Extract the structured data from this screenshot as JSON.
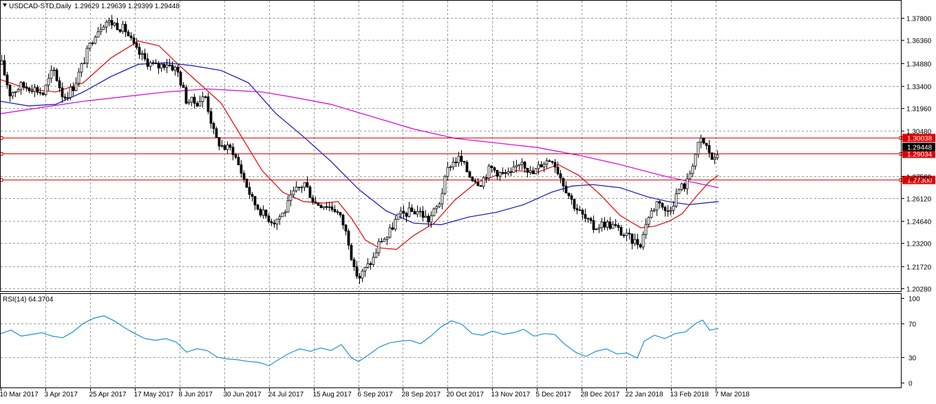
{
  "header": {
    "symbol": "USDCAD-STD,Daily",
    "ohlc": "1.29629 1.29639 1.29399 1.29448"
  },
  "rsi_panel": {
    "label": "RSI(14) 64.3704"
  },
  "chart_data": {
    "type": "candlestick",
    "instrument": "USDCAD-STD",
    "timeframe": "Daily",
    "price_axis": {
      "ylim": [
        1.2005,
        1.3892
      ],
      "ticks": [
        "1.37800",
        "1.36360",
        "1.34880",
        "1.33400",
        "1.31960",
        "1.30480",
        "1.27560",
        "1.26120",
        "1.24640",
        "1.23200",
        "1.21720",
        "1.20280"
      ]
    },
    "date_axis": {
      "labels": [
        "10 Mar 2017",
        "3 Apr 2017",
        "25 Apr 2017",
        "17 May 2017",
        "8 Jun 2017",
        "30 Jun 2017",
        "24 Jul 2017",
        "15 Aug 2017",
        "6 Sep 2017",
        "28 Sep 2017",
        "20 Oct 2017",
        "13 Nov 2017",
        "5 Dec 2017",
        "28 Dec 2017",
        "22 Jan 2018",
        "13 Feb 2018",
        "7 Mar 2018"
      ]
    },
    "price_path": [
      [
        0,
        1.348
      ],
      [
        12,
        1.329
      ],
      [
        28,
        1.334
      ],
      [
        45,
        1.333
      ],
      [
        60,
        1.329
      ],
      [
        75,
        1.345
      ],
      [
        90,
        1.326
      ],
      [
        105,
        1.334
      ],
      [
        120,
        1.351
      ],
      [
        135,
        1.368
      ],
      [
        150,
        1.376
      ],
      [
        165,
        1.374
      ],
      [
        180,
        1.37
      ],
      [
        195,
        1.357
      ],
      [
        210,
        1.35
      ],
      [
        225,
        1.346
      ],
      [
        240,
        1.349
      ],
      [
        255,
        1.344
      ],
      [
        268,
        1.325
      ],
      [
        282,
        1.323
      ],
      [
        296,
        1.327
      ],
      [
        310,
        1.3
      ],
      [
        322,
        1.294
      ],
      [
        335,
        1.293
      ],
      [
        350,
        1.276
      ],
      [
        365,
        1.259
      ],
      [
        380,
        1.251
      ],
      [
        395,
        1.246
      ],
      [
        410,
        1.252
      ],
      [
        425,
        1.265
      ],
      [
        440,
        1.271
      ],
      [
        455,
        1.258
      ],
      [
        470,
        1.257
      ],
      [
        485,
        1.254
      ],
      [
        495,
        1.246
      ],
      [
        505,
        1.232
      ],
      [
        512,
        1.214
      ],
      [
        520,
        1.21
      ],
      [
        528,
        1.215
      ],
      [
        540,
        1.222
      ],
      [
        550,
        1.234
      ],
      [
        560,
        1.236
      ],
      [
        575,
        1.249
      ],
      [
        590,
        1.252
      ],
      [
        605,
        1.253
      ],
      [
        620,
        1.247
      ],
      [
        635,
        1.257
      ],
      [
        650,
        1.283
      ],
      [
        665,
        1.287
      ],
      [
        680,
        1.276
      ],
      [
        695,
        1.271
      ],
      [
        710,
        1.281
      ],
      [
        725,
        1.277
      ],
      [
        740,
        1.276
      ],
      [
        755,
        1.287
      ],
      [
        770,
        1.276
      ],
      [
        785,
        1.284
      ],
      [
        800,
        1.287
      ],
      [
        815,
        1.272
      ],
      [
        830,
        1.258
      ],
      [
        845,
        1.249
      ],
      [
        860,
        1.242
      ],
      [
        875,
        1.245
      ],
      [
        890,
        1.243
      ],
      [
        905,
        1.237
      ],
      [
        920,
        1.233
      ],
      [
        930,
        1.232
      ],
      [
        935,
        1.245
      ],
      [
        945,
        1.253
      ],
      [
        955,
        1.261
      ],
      [
        965,
        1.251
      ],
      [
        975,
        1.258
      ],
      [
        985,
        1.268
      ],
      [
        995,
        1.27
      ],
      [
        1005,
        1.286
      ],
      [
        1015,
        1.299
      ],
      [
        1025,
        1.294
      ],
      [
        1035,
        1.284
      ],
      [
        1043,
        1.294
      ]
    ],
    "series": [
      {
        "name": "MA fast",
        "color": "#e00000",
        "points": [
          [
            0,
            1.338
          ],
          [
            40,
            1.332
          ],
          [
            80,
            1.33
          ],
          [
            120,
            1.336
          ],
          [
            160,
            1.352
          ],
          [
            200,
            1.363
          ],
          [
            230,
            1.36
          ],
          [
            260,
            1.347
          ],
          [
            290,
            1.335
          ],
          [
            320,
            1.323
          ],
          [
            350,
            1.301
          ],
          [
            380,
            1.279
          ],
          [
            410,
            1.265
          ],
          [
            440,
            1.259
          ],
          [
            470,
            1.258
          ],
          [
            490,
            1.259
          ],
          [
            510,
            1.248
          ],
          [
            530,
            1.234
          ],
          [
            550,
            1.229
          ],
          [
            575,
            1.228
          ],
          [
            600,
            1.237
          ],
          [
            630,
            1.245
          ],
          [
            660,
            1.26
          ],
          [
            690,
            1.271
          ],
          [
            720,
            1.276
          ],
          [
            750,
            1.279
          ],
          [
            780,
            1.278
          ],
          [
            810,
            1.283
          ],
          [
            840,
            1.276
          ],
          [
            870,
            1.264
          ],
          [
            900,
            1.25
          ],
          [
            930,
            1.242
          ],
          [
            950,
            1.243
          ],
          [
            970,
            1.246
          ],
          [
            990,
            1.251
          ],
          [
            1010,
            1.262
          ],
          [
            1030,
            1.272
          ],
          [
            1043,
            1.276
          ]
        ]
      },
      {
        "name": "MA medium",
        "color": "#1010c0",
        "points": [
          [
            0,
            1.324
          ],
          [
            40,
            1.321
          ],
          [
            80,
            1.322
          ],
          [
            120,
            1.33
          ],
          [
            160,
            1.34
          ],
          [
            200,
            1.348
          ],
          [
            240,
            1.349
          ],
          [
            280,
            1.347
          ],
          [
            320,
            1.344
          ],
          [
            360,
            1.336
          ],
          [
            400,
            1.316
          ],
          [
            440,
            1.301
          ],
          [
            480,
            1.285
          ],
          [
            520,
            1.267
          ],
          [
            560,
            1.253
          ],
          [
            600,
            1.245
          ],
          [
            640,
            1.244
          ],
          [
            680,
            1.249
          ],
          [
            720,
            1.252
          ],
          [
            760,
            1.257
          ],
          [
            800,
            1.265
          ],
          [
            830,
            1.269
          ],
          [
            860,
            1.27
          ],
          [
            900,
            1.268
          ],
          [
            940,
            1.262
          ],
          [
            970,
            1.259
          ],
          [
            1000,
            1.257
          ],
          [
            1043,
            1.259
          ]
        ]
      },
      {
        "name": "MA slow",
        "color": "#d400d4",
        "points": [
          [
            0,
            1.316
          ],
          [
            60,
            1.32
          ],
          [
            120,
            1.324
          ],
          [
            180,
            1.327
          ],
          [
            240,
            1.33
          ],
          [
            300,
            1.332
          ],
          [
            340,
            1.331
          ],
          [
            380,
            1.33
          ],
          [
            420,
            1.327
          ],
          [
            480,
            1.322
          ],
          [
            540,
            1.314
          ],
          [
            600,
            1.306
          ],
          [
            660,
            1.3
          ],
          [
            720,
            1.297
          ],
          [
            780,
            1.294
          ],
          [
            840,
            1.289
          ],
          [
            900,
            1.283
          ],
          [
            960,
            1.276
          ],
          [
            1000,
            1.272
          ],
          [
            1043,
            1.268
          ]
        ]
      }
    ],
    "horizontal_lines": [
      {
        "value": 1.30038,
        "label": "1.30038",
        "color": "#e00000"
      },
      {
        "value": 1.29034,
        "label": "1.29034",
        "color": "#e00000"
      },
      {
        "value": 1.273,
        "label": "1.27300",
        "color": "#e00000"
      }
    ],
    "current_price": {
      "value": 1.29448,
      "label": "1.29448"
    },
    "rsi": {
      "name": "RSI(14)",
      "color": "#1e8fd8",
      "ylim": [
        0,
        100
      ],
      "ticks": [
        "100",
        "70",
        "30",
        "0"
      ],
      "values": [
        [
          0,
          58
        ],
        [
          15,
          62
        ],
        [
          30,
          55
        ],
        [
          45,
          57
        ],
        [
          60,
          59
        ],
        [
          75,
          55
        ],
        [
          90,
          53
        ],
        [
          105,
          60
        ],
        [
          120,
          70
        ],
        [
          135,
          76
        ],
        [
          150,
          79
        ],
        [
          165,
          73
        ],
        [
          180,
          65
        ],
        [
          195,
          58
        ],
        [
          210,
          52
        ],
        [
          225,
          50
        ],
        [
          240,
          52
        ],
        [
          255,
          48
        ],
        [
          270,
          36
        ],
        [
          285,
          40
        ],
        [
          300,
          38
        ],
        [
          315,
          30
        ],
        [
          330,
          28
        ],
        [
          345,
          27
        ],
        [
          360,
          25
        ],
        [
          375,
          24
        ],
        [
          390,
          20
        ],
        [
          405,
          28
        ],
        [
          420,
          35
        ],
        [
          435,
          40
        ],
        [
          450,
          37
        ],
        [
          465,
          41
        ],
        [
          480,
          38
        ],
        [
          495,
          45
        ],
        [
          510,
          29
        ],
        [
          520,
          25
        ],
        [
          535,
          33
        ],
        [
          550,
          42
        ],
        [
          565,
          47
        ],
        [
          580,
          49
        ],
        [
          595,
          50
        ],
        [
          610,
          46
        ],
        [
          625,
          55
        ],
        [
          640,
          66
        ],
        [
          655,
          73
        ],
        [
          670,
          69
        ],
        [
          685,
          58
        ],
        [
          700,
          56
        ],
        [
          715,
          61
        ],
        [
          730,
          57
        ],
        [
          745,
          59
        ],
        [
          760,
          63
        ],
        [
          775,
          55
        ],
        [
          790,
          58
        ],
        [
          805,
          57
        ],
        [
          820,
          45
        ],
        [
          835,
          36
        ],
        [
          850,
          31
        ],
        [
          865,
          37
        ],
        [
          880,
          40
        ],
        [
          895,
          34
        ],
        [
          910,
          35
        ],
        [
          925,
          29
        ],
        [
          935,
          49
        ],
        [
          950,
          56
        ],
        [
          965,
          52
        ],
        [
          980,
          58
        ],
        [
          995,
          60
        ],
        [
          1010,
          70
        ],
        [
          1020,
          74
        ],
        [
          1030,
          62
        ],
        [
          1043,
          64
        ]
      ]
    },
    "grid": true
  }
}
